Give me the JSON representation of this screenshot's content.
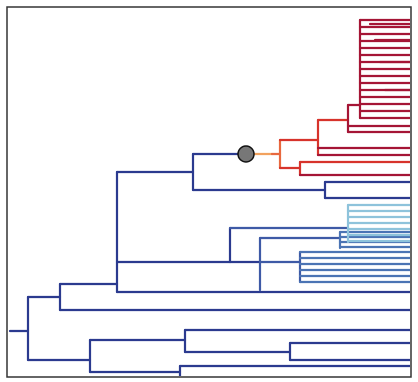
{
  "figure": {
    "kind": "phylogenetic tree",
    "frame_color": "#333333",
    "background": "#ffffff"
  },
  "palette": {
    "dark_blue": "#2b3a8f",
    "mid_blue": "#3e5aa6",
    "blue": "#4b74b4",
    "light_blue": "#8ec3db",
    "orange": "#e8683e",
    "light_orange": "#f2a25e",
    "red": "#d7332b",
    "dark_red": "#a51535"
  },
  "marker": {
    "kind": "circle",
    "fill": "#777777",
    "stroke": "#111111"
  }
}
